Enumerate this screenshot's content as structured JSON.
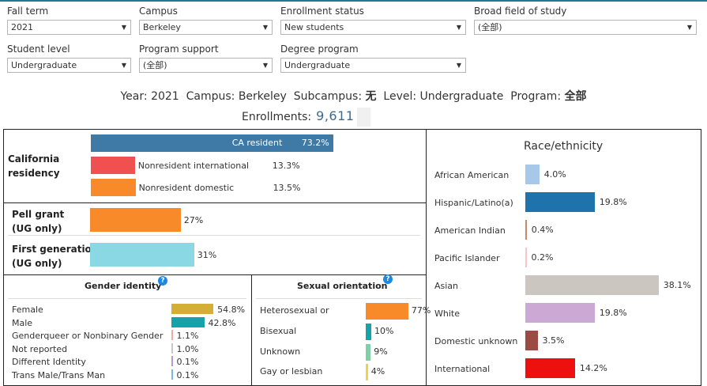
{
  "filters": [
    {
      "label": "Fall term",
      "value": "2021"
    },
    {
      "label": "Campus",
      "value": "Berkeley"
    },
    {
      "label": "Enrollment status",
      "value": "New students"
    },
    {
      "label": "Broad field of study",
      "value": "(全部)"
    },
    {
      "label": "Student level",
      "value": "Undergraduate"
    },
    {
      "label": "Program support",
      "value": "(全部)"
    },
    {
      "label": "Degree program",
      "value": "Undergraduate"
    }
  ],
  "summary": {
    "year_label": "Year:",
    "year": "2021",
    "campus_label": "Campus:",
    "campus": "Berkeley",
    "subcampus_label": "Subcampus:",
    "subcampus": "无",
    "level_label": "Level:",
    "level": "Undergraduate",
    "program_label": "Program:",
    "program": "全部",
    "enrollments_label": "Enrollments:",
    "enrollments": "9,611"
  },
  "colors": {
    "ca_resident": "#3f79a6",
    "nonres_intl": "#f0504f",
    "nonres_dom": "#f98a2a",
    "pell": "#f98a2a",
    "firstgen": "#8ad8e4"
  },
  "chart_data": [
    {
      "type": "bar",
      "title": "California residency",
      "xlim": [
        0,
        100
      ],
      "items": [
        {
          "label": "CA resident",
          "value": 73.2,
          "display": "73.2%",
          "color": "#3f79a6"
        },
        {
          "label": "Nonresident international",
          "value": 13.3,
          "display": "13.3%",
          "color": "#f0504f"
        },
        {
          "label": "Nonresident domestic",
          "value": 13.5,
          "display": "13.5%",
          "color": "#f98a2a"
        }
      ]
    },
    {
      "type": "bar",
      "title": "Program support",
      "xlim": [
        0,
        100
      ],
      "items": [
        {
          "label": "Pell grant",
          "sublabel": "(UG only)",
          "value": 27,
          "display": "27%",
          "color": "#f98a2a"
        },
        {
          "label": "First generation",
          "sublabel": "(UG only)",
          "value": 31,
          "display": "31%",
          "color": "#8ad8e4"
        }
      ]
    },
    {
      "type": "bar",
      "title": "Gender identity",
      "xlim": [
        0,
        100
      ],
      "items": [
        {
          "label": "Female",
          "value": 54.8,
          "display": "54.8%",
          "color": "#d4af37"
        },
        {
          "label": "Male",
          "value": 42.8,
          "display": "42.8%",
          "color": "#17a2a8"
        },
        {
          "label": "Genderqueer or Nonbinary Gender",
          "value": 1.1,
          "display": "1.1%",
          "color": "#f3a9a0"
        },
        {
          "label": "Not reported",
          "value": 1.0,
          "display": "1.0%",
          "color": "#c8c8c8"
        },
        {
          "label": "Different Identity",
          "value": 0.1,
          "display": "0.1%",
          "color": "#b59ad0"
        },
        {
          "label": "Trans Male/Trans Man",
          "value": 0.1,
          "display": "0.1%",
          "color": "#7ab8e0"
        }
      ]
    },
    {
      "type": "bar",
      "title": "Sexual orientation",
      "xlim": [
        0,
        100
      ],
      "items": [
        {
          "label": "Heterosexual or",
          "value": 77,
          "display": "77%",
          "color": "#f98a2a"
        },
        {
          "label": "Bisexual",
          "value": 10,
          "display": "10%",
          "color": "#17a2a8"
        },
        {
          "label": "Unknown",
          "value": 9,
          "display": "9%",
          "color": "#7fcfa8"
        },
        {
          "label": "Gay or lesbian",
          "value": 4,
          "display": "4%",
          "color": "#f2d14c"
        }
      ]
    },
    {
      "type": "bar",
      "title": "Race/ethnicity",
      "xlim": [
        0,
        40
      ],
      "items": [
        {
          "label": "African American",
          "value": 4.0,
          "display": "4.0%",
          "color": "#a7c8e8"
        },
        {
          "label": "Hispanic/Latino(a)",
          "value": 19.8,
          "display": "19.8%",
          "color": "#1f73ad"
        },
        {
          "label": "American Indian",
          "value": 0.4,
          "display": "0.4%",
          "color": "#c88a6a"
        },
        {
          "label": "Pacific Islander",
          "value": 0.2,
          "display": "0.2%",
          "color": "#f5c6c6"
        },
        {
          "label": "Asian",
          "value": 38.1,
          "display": "38.1%",
          "color": "#cbc7c0"
        },
        {
          "label": "White",
          "value": 19.8,
          "display": "19.8%",
          "color": "#cca9d4"
        },
        {
          "label": "Domestic unknown",
          "value": 3.5,
          "display": "3.5%",
          "color": "#9b4a44"
        },
        {
          "label": "International",
          "value": 14.2,
          "display": "14.2%",
          "color": "#ee0f0f"
        }
      ]
    }
  ]
}
